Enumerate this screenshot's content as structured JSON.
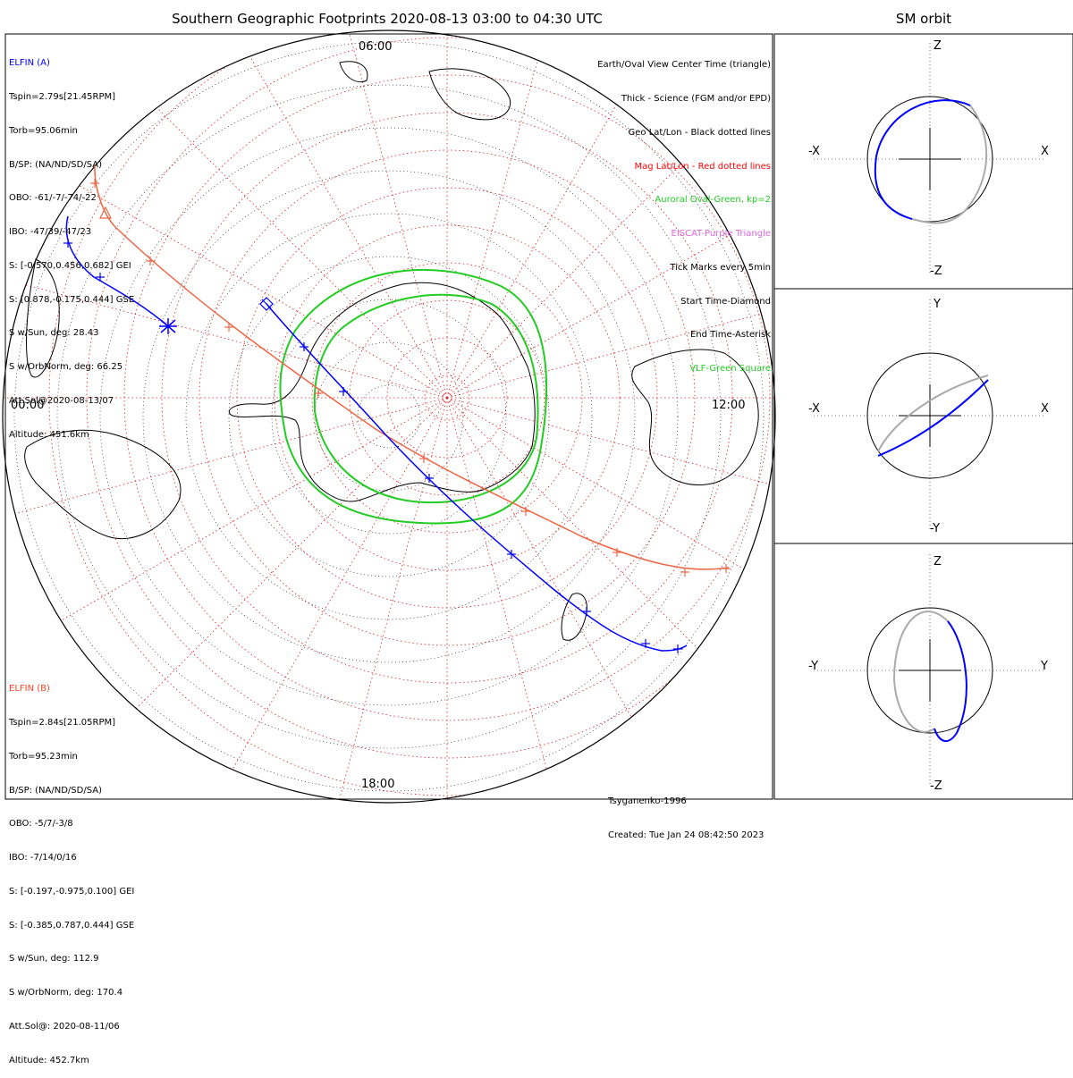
{
  "title": "Southern Geographic Footprints 2020-08-13 03:00 to 04:30 UTC",
  "side_title": "SM orbit",
  "colors": {
    "elfin_a": "#0000ff",
    "elfin_b": "#ff0000",
    "elfin_b_track": "#ee6644",
    "oval": "#22cc22",
    "mag_grid": "#dd2222",
    "geo_grid": "#000000",
    "eiscat": "#cc44cc",
    "gray_orbit": "#aaaaaa"
  },
  "elfin_a": {
    "name": "ELFIN (A)",
    "lines": [
      "Tspin=2.79s[21.45RPM]",
      "Torb=95.06min",
      "B/SP: (NA/ND/SD/SA)",
      "OBO: -61/-7/-74/-22",
      "IBO: -47/39/-47/23",
      "S: [-0.570,0.456,0.682] GEI",
      "S: [0.878,-0.175,0.444] GSE",
      "S w/Sun, deg: 28.43",
      "S w/OrbNorm, deg: 66.25",
      "Att.Sol@2020-08-13/07",
      "Altitude: 451.6km"
    ]
  },
  "elfin_b": {
    "name": "ELFIN (B)",
    "lines": [
      "Tspin=2.84s[21.05RPM]",
      "Torb=95.23min",
      "B/SP: (NA/ND/SD/SA)",
      "OBO: -5/7/-3/8",
      "IBO: -7/14/0/16",
      "S: [-0.197,-0.975,0.100] GEI",
      "S: [-0.385,0.787,0.444] GSE",
      "S w/Sun, deg: 112.9",
      "S w/OrbNorm, deg: 170.4",
      "Att.Sol@: 2020-08-11/06",
      "Altitude: 452.7km"
    ]
  },
  "legend": [
    {
      "text": "Earth/Oval View Center Time (triangle)",
      "color": "#000000"
    },
    {
      "text": "Thick - Science (FGM and/or EPD)",
      "color": "#000000"
    },
    {
      "text": "Geo Lat/Lon - Black dotted lines",
      "color": "#000000"
    },
    {
      "text": "Mag Lat/Lon - Red dotted lines",
      "color": "#ff0000"
    },
    {
      "text": "Auroral Oval-Green, kp=2",
      "color": "#22cc22"
    },
    {
      "text": "EISCAT-Purple Triangle",
      "color": "#dd66dd"
    },
    {
      "text": "Tick Marks every 5min",
      "color": "#000000"
    },
    {
      "text": "Start Time-Diamond",
      "color": "#000000"
    },
    {
      "text": "End Time-Asterisk",
      "color": "#000000"
    },
    {
      "text": "VLF-Green Square",
      "color": "#22cc22"
    }
  ],
  "local_time_labels": {
    "top": "06:00",
    "left": "00:00",
    "right": "12:00",
    "bottom": "18:00"
  },
  "footer": {
    "model": "Tsyganenko-1996",
    "created": "Created: Tue Jan 24 08:42:50 2023"
  },
  "panels": [
    {
      "top": "Z",
      "bottom": "-Z",
      "left": "-X",
      "right": "X"
    },
    {
      "top": "Y",
      "bottom": "-Y",
      "left": "-X",
      "right": "X"
    },
    {
      "top": "Z",
      "bottom": "-Z",
      "left": "-Y",
      "right": "Y"
    }
  ],
  "chart_data": {
    "type": "polar footprint map",
    "projection": "south polar",
    "oval_kp": 2,
    "tick_interval_min": 5,
    "elfin_a_track": "blue, diamond start to asterisk end",
    "elfin_b_track": "red, triangle view center",
    "orbit_panels": 3
  }
}
